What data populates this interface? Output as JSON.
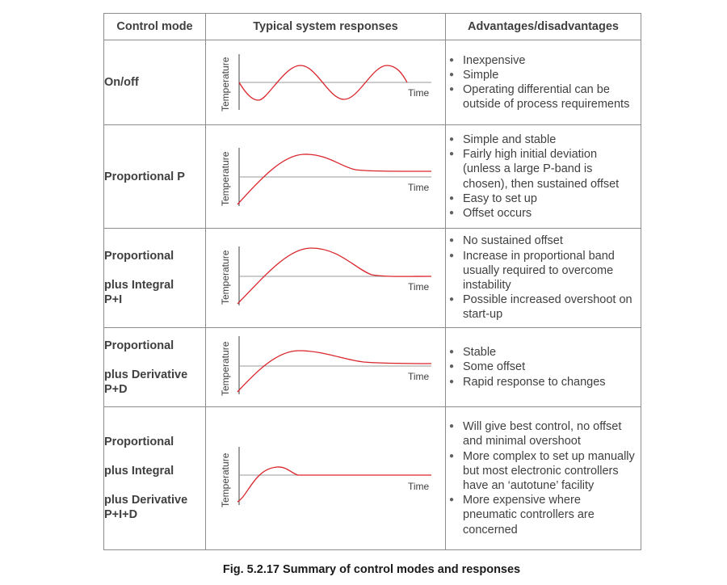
{
  "header": {
    "col1": "Control mode",
    "col2": "Typical system responses",
    "col3": "Advantages/disadvantages"
  },
  "axis": {
    "y": "Temperature",
    "x": "Time"
  },
  "rows": [
    {
      "mode": [
        "On/off"
      ],
      "items": [
        "Inexpensive",
        "Simple",
        "Operating differential can be outside of process requirements"
      ]
    },
    {
      "mode": [
        "Proportional P"
      ],
      "items": [
        "Simple and stable",
        "Fairly high initial deviation (unless a large P-band is chosen), then sustained offset",
        "Easy to set up",
        "Offset occurs"
      ]
    },
    {
      "mode": [
        "Proportional",
        "plus Integral",
        "P+I"
      ],
      "items": [
        "No sustained offset",
        "Increase in proportional band usually required to overcome instability",
        "Possible increased overshoot on start-up"
      ]
    },
    {
      "mode": [
        "Proportional",
        "plus Derivative",
        "P+D"
      ],
      "items": [
        "Stable",
        "Some offset",
        "Rapid response to changes"
      ]
    },
    {
      "mode": [
        "Proportional",
        "plus Integral",
        "plus Derivative",
        "P+I+D"
      ],
      "items": [
        "Will give best control, no offset and minimal overshoot",
        "More complex to set up manually but most electronic controllers have an ‘autotune’ facility",
        "More expensive where pneumatic controllers are concerned"
      ]
    }
  ],
  "caption": "Fig. 5.2.17 Summary of control modes and responses",
  "colors": {
    "curve": "#d9242b",
    "setpoint": "#9a9a9a",
    "axis": "#404040",
    "border": "#8c8c8c"
  }
}
